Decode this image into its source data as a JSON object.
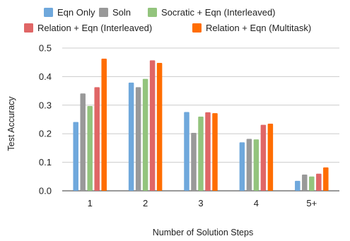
{
  "chart_data": {
    "type": "bar",
    "title": "",
    "xlabel": "Number of Solution Steps",
    "ylabel": "Test Accuracy",
    "ylim": [
      0,
      0.5
    ],
    "yticks": [
      "0.0",
      "0.1",
      "0.2",
      "0.3",
      "0.4",
      "0.5"
    ],
    "grid": "horizontal",
    "legend_position": "top",
    "categories": [
      "1",
      "2",
      "3",
      "4",
      "5+"
    ],
    "series": [
      {
        "name": "Eqn Only",
        "color": "#6fa8dc",
        "values": [
          0.241,
          0.379,
          0.276,
          0.17,
          0.035
        ]
      },
      {
        "name": "Soln",
        "color": "#999999",
        "values": [
          0.341,
          0.363,
          0.203,
          0.182,
          0.057
        ]
      },
      {
        "name": "Socratic + Eqn (Interleaved)",
        "color": "#93c47d",
        "values": [
          0.297,
          0.392,
          0.26,
          0.18,
          0.05
        ]
      },
      {
        "name": "Relation + Eqn (Interleaved)",
        "color": "#e06666",
        "values": [
          0.363,
          0.457,
          0.275,
          0.231,
          0.06
        ]
      },
      {
        "name": "Relation + Eqn (Multitask)",
        "color": "#ff6d01",
        "values": [
          0.463,
          0.448,
          0.272,
          0.235,
          0.082
        ]
      }
    ]
  }
}
